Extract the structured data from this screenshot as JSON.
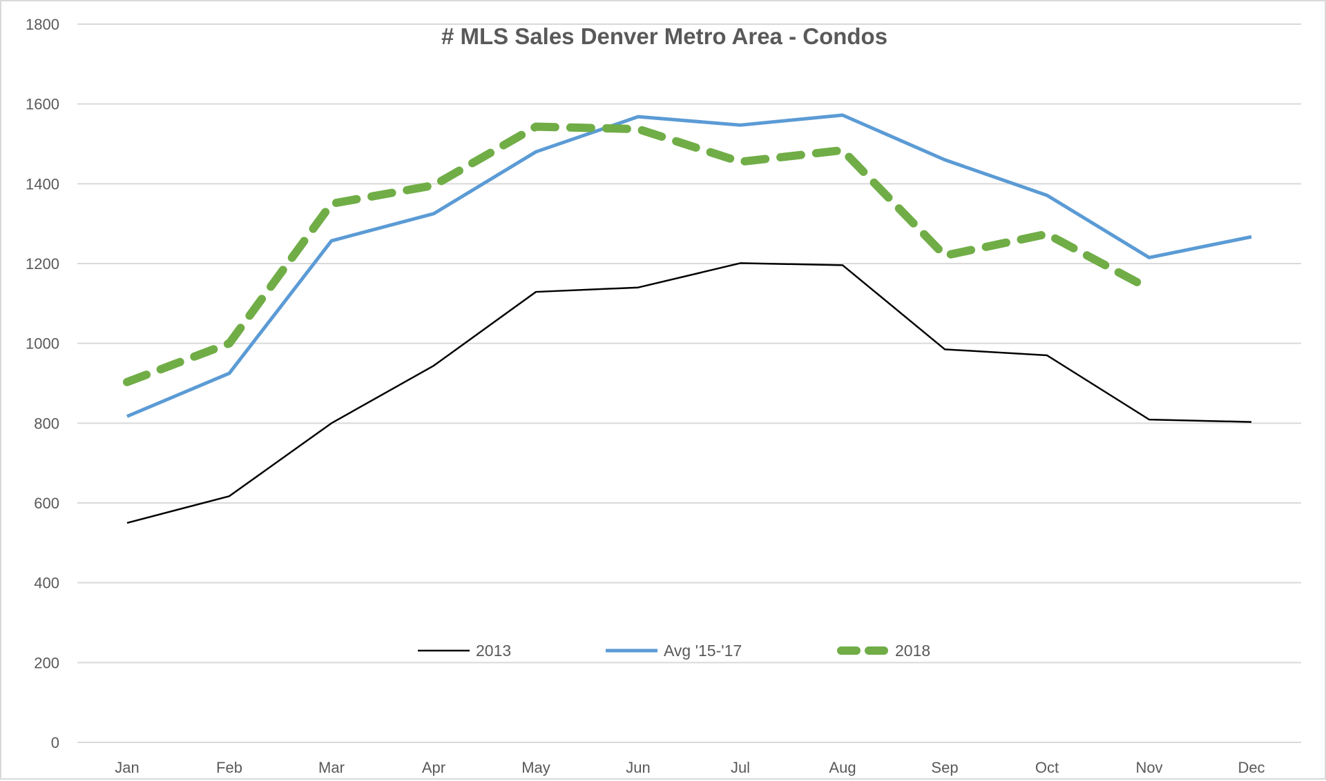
{
  "chart_data": {
    "type": "line",
    "title": "# MLS Sales Denver Metro Area - Condos",
    "xlabel": "",
    "ylabel": "",
    "categories": [
      "Jan",
      "Feb",
      "Mar",
      "Apr",
      "May",
      "Jun",
      "Jul",
      "Aug",
      "Sep",
      "Oct",
      "Nov",
      "Dec"
    ],
    "ylim": [
      0,
      1800
    ],
    "yticks": [
      0,
      200,
      400,
      600,
      800,
      1000,
      1200,
      1400,
      1600,
      1800
    ],
    "grid": true,
    "legend_position": "bottom-center-inside",
    "series": [
      {
        "name": "2013",
        "color": "#000000",
        "style": "solid",
        "values": [
          550,
          617,
          800,
          944,
          1129,
          1140,
          1201,
          1196,
          985,
          970,
          809,
          803
        ]
      },
      {
        "name": "Avg '15-'17",
        "color": "#5b9bd5",
        "style": "solid",
        "values": [
          817,
          925,
          1257,
          1325,
          1480,
          1568,
          1547,
          1572,
          1460,
          1371,
          1215,
          1267
        ]
      },
      {
        "name": "2018",
        "color": "#70ad47",
        "style": "dashed",
        "values": [
          903,
          1000,
          1350,
          1396,
          1543,
          1537,
          1455,
          1484,
          1220,
          1274,
          1137,
          null
        ]
      }
    ]
  }
}
